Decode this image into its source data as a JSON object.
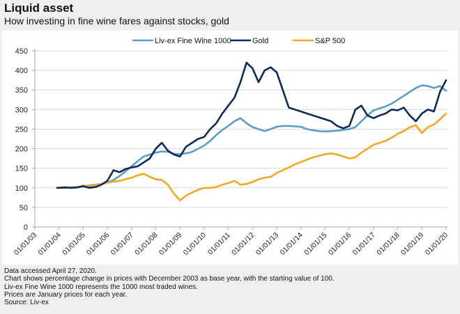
{
  "header": {
    "title": "Liquid asset",
    "subtitle": "How investing in fine wine fares against stocks, gold"
  },
  "footer": {
    "lines": [
      "Data accessed April 27, 2020.",
      "Chart shows percentage change in prices with December 2003 as base year, with the starting value of 100.",
      "Liv-ex Fine Wine 1000 represents the 1000 most traded wines.",
      "Prices are January prices for each year.",
      "Source: Liv-ex"
    ]
  },
  "colors": {
    "wine": "#5b9dc9",
    "gold": "#0b2a5b",
    "sp500": "#f5a623",
    "grid": "#d9d9d9",
    "axis": "#a6a6a6"
  },
  "chart_data": {
    "type": "line",
    "title": "Liquid asset",
    "subtitle": "How investing in fine wine fares against stocks, gold",
    "xlabel": "",
    "ylabel": "",
    "ylim": [
      0,
      450
    ],
    "yticks": [
      0,
      50,
      100,
      150,
      200,
      250,
      300,
      350,
      400,
      450
    ],
    "xlim": [
      2003,
      2020
    ],
    "xtick_labels": [
      "01/01/03",
      "01/01/04",
      "01/01/05",
      "01/01/06",
      "01/01/07",
      "01/01/08",
      "01/01/09",
      "01/01/10",
      "01/01/11",
      "01/01/12",
      "01/01/13",
      "01/01/14",
      "01/01/15",
      "01/01/16",
      "01/01/17",
      "01/01/18",
      "01/01/19",
      "01/01/20"
    ],
    "grid": true,
    "legend_position": "top-center",
    "x": [
      2003.92,
      2004.25,
      2004.5,
      2004.75,
      2005.0,
      2005.25,
      2005.5,
      2005.75,
      2006.0,
      2006.25,
      2006.5,
      2006.75,
      2007.0,
      2007.25,
      2007.5,
      2007.75,
      2008.0,
      2008.25,
      2008.5,
      2008.75,
      2009.0,
      2009.25,
      2009.5,
      2009.75,
      2010.0,
      2010.25,
      2010.5,
      2010.75,
      2011.0,
      2011.25,
      2011.5,
      2011.75,
      2012.0,
      2012.25,
      2012.5,
      2012.75,
      2013.0,
      2013.25,
      2013.5,
      2013.75,
      2014.0,
      2014.25,
      2014.5,
      2014.75,
      2015.0,
      2015.25,
      2015.5,
      2015.75,
      2016.0,
      2016.25,
      2016.5,
      2016.75,
      2017.0,
      2017.25,
      2017.5,
      2017.75,
      2018.0,
      2018.25,
      2018.5,
      2018.75,
      2019.0,
      2019.25,
      2019.5,
      2019.75,
      2020.0
    ],
    "series": [
      {
        "name": "Liv-ex Fine Wine 1000",
        "color": "#5b9dc9",
        "values": [
          100,
          100,
          101,
          102,
          104,
          106,
          108,
          110,
          113,
          120,
          130,
          142,
          155,
          168,
          180,
          185,
          190,
          193,
          192,
          187,
          186,
          188,
          192,
          200,
          208,
          220,
          235,
          248,
          258,
          270,
          278,
          265,
          255,
          250,
          245,
          250,
          256,
          258,
          258,
          257,
          256,
          250,
          247,
          245,
          244,
          245,
          246,
          248,
          250,
          255,
          270,
          285,
          298,
          303,
          308,
          315,
          325,
          335,
          345,
          355,
          362,
          360,
          355,
          360,
          348
        ]
      },
      {
        "name": "Gold",
        "color": "#0b2a5b",
        "values": [
          100,
          101,
          100,
          101,
          104,
          100,
          102,
          108,
          118,
          145,
          140,
          148,
          152,
          155,
          165,
          175,
          200,
          215,
          195,
          185,
          180,
          205,
          215,
          225,
          230,
          250,
          265,
          290,
          310,
          330,
          370,
          420,
          405,
          370,
          400,
          408,
          395,
          350,
          305,
          300,
          295,
          290,
          285,
          280,
          275,
          270,
          258,
          252,
          258,
          300,
          310,
          285,
          278,
          285,
          290,
          300,
          298,
          305,
          285,
          270,
          290,
          300,
          295,
          345,
          375
        ]
      },
      {
        "name": "S&P 500",
        "color": "#f5a623",
        "values": [
          100,
          102,
          100,
          101,
          106,
          104,
          107,
          110,
          113,
          116,
          118,
          122,
          126,
          132,
          136,
          128,
          122,
          120,
          108,
          85,
          68,
          80,
          88,
          95,
          100,
          100,
          102,
          108,
          112,
          118,
          108,
          110,
          115,
          122,
          126,
          128,
          138,
          145,
          152,
          160,
          166,
          172,
          178,
          182,
          186,
          188,
          185,
          180,
          175,
          178,
          190,
          200,
          210,
          215,
          220,
          228,
          238,
          245,
          255,
          260,
          240,
          255,
          262,
          275,
          290
        ]
      }
    ]
  }
}
